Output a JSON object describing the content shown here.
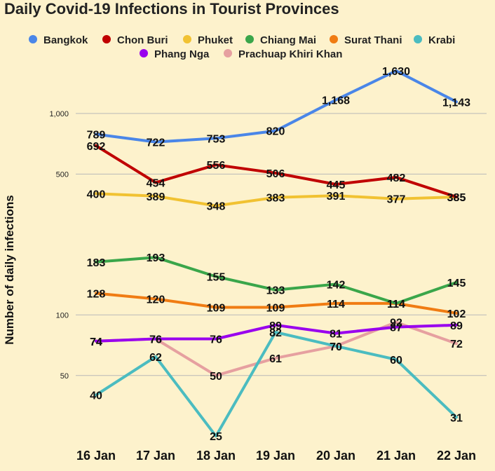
{
  "chart_data": {
    "type": "line",
    "title": "Daily Covid-19 Infections in Tourist Provinces",
    "ylabel": "Number of daily infections",
    "xlabel": "",
    "yscale": "log",
    "ylim": [
      21,
      2300
    ],
    "yticks": [
      50,
      100,
      500,
      1000
    ],
    "ytick_labels": [
      "50",
      "100",
      "500",
      "1,000"
    ],
    "grid": true,
    "legend": "top",
    "categories": [
      "16 Jan",
      "17 Jan",
      "18 Jan",
      "19 Jan",
      "20 Jan",
      "21 Jan",
      "22 Jan"
    ],
    "series": [
      {
        "name": "Bangkok",
        "color": "#4a86e8",
        "values": [
          789,
          722,
          753,
          820,
          1168,
          1630,
          1143
        ],
        "labels": [
          "789",
          "722",
          "753",
          "820",
          "1,168",
          "1,630",
          "1,143"
        ]
      },
      {
        "name": "Chon Buri",
        "color": "#c00000",
        "values": [
          692,
          454,
          556,
          506,
          445,
          482,
          385
        ],
        "labels": [
          "692",
          "454",
          "556",
          "506",
          "445",
          "482",
          "385"
        ]
      },
      {
        "name": "Phuket",
        "color": "#f1c232",
        "values": [
          400,
          389,
          348,
          383,
          391,
          377,
          385
        ],
        "labels": [
          "400",
          "389",
          "348",
          "383",
          "391",
          "377",
          "385"
        ]
      },
      {
        "name": "Chiang Mai",
        "color": "#3aa64a",
        "values": [
          183,
          193,
          155,
          133,
          142,
          114,
          145
        ],
        "labels": [
          "183",
          "193",
          "155",
          "133",
          "142",
          "114",
          "145"
        ]
      },
      {
        "name": "Surat Thani",
        "color": "#f07c13",
        "values": [
          128,
          120,
          109,
          109,
          114,
          114,
          102
        ],
        "labels": [
          "128",
          "120",
          "109",
          "109",
          "114",
          "114",
          "102"
        ]
      },
      {
        "name": "Krabi",
        "color": "#4bbcc0",
        "values": [
          40,
          62,
          25,
          82,
          70,
          60,
          31
        ],
        "labels": [
          "40",
          "62",
          "25",
          "82",
          "70",
          "60",
          "31"
        ]
      },
      {
        "name": "Phang Nga",
        "color": "#9900ee",
        "values": [
          74,
          76,
          76,
          89,
          81,
          87,
          89
        ],
        "labels": [
          "74",
          "76",
          "76",
          "89",
          "81",
          "87",
          "89"
        ]
      },
      {
        "name": "Prachuap Khiri Khan",
        "color": "#e6a0a0",
        "values": [
          74,
          76,
          50,
          61,
          70,
          92,
          72
        ],
        "labels": [
          "74",
          "76",
          "50",
          "61",
          "70",
          "92",
          "72"
        ]
      }
    ]
  }
}
